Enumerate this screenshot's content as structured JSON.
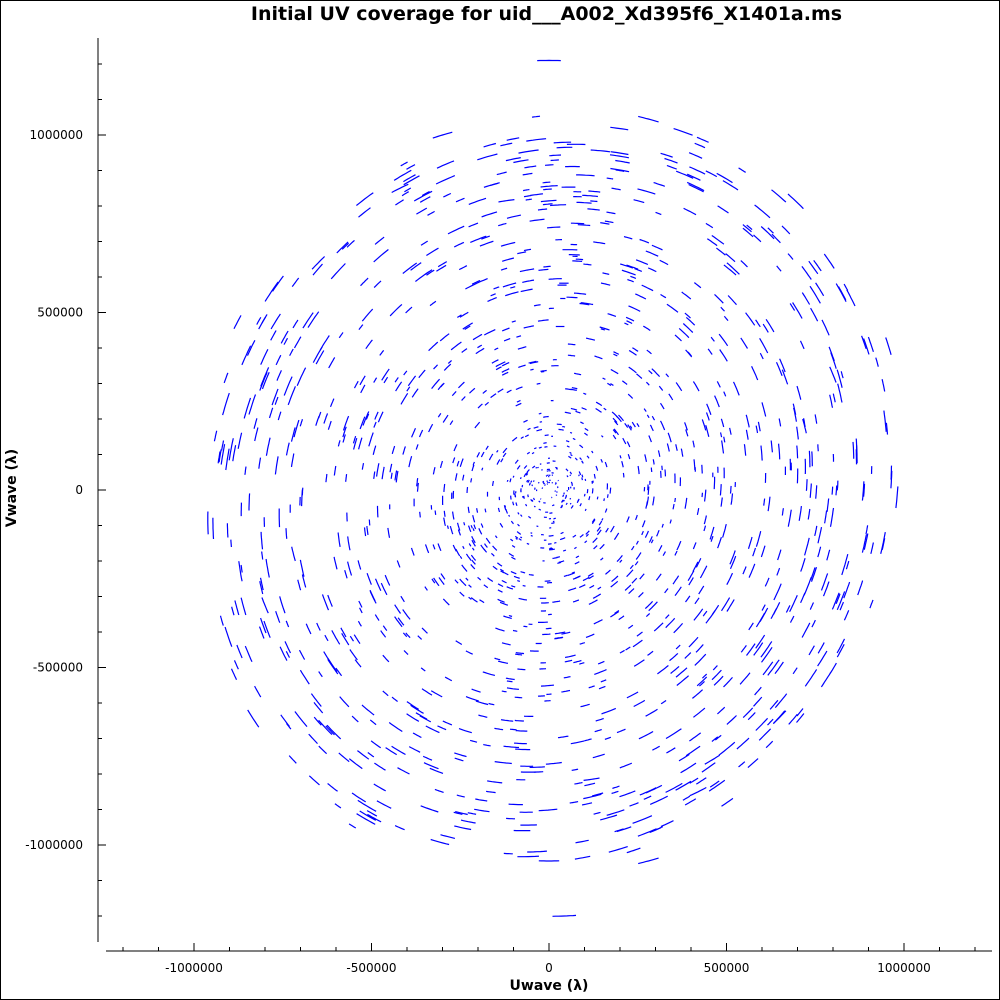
{
  "chart_data": {
    "type": "scatter",
    "title": "Initial UV coverage for uid___A002_Xd395f6_X1401a.ms",
    "xlabel": "Uwave (λ)",
    "ylabel": "Vwave (λ)",
    "xlim": [
      -1270000,
      1270000
    ],
    "ylim": [
      -1270000,
      1270000
    ],
    "x_ticks": [
      -1000000,
      -500000,
      0,
      500000,
      1000000
    ],
    "x_tick_labels": [
      "-1000000",
      "-500000",
      "0",
      "500000",
      "1000000"
    ],
    "y_ticks": [
      -1000000,
      -500000,
      0,
      500000,
      1000000
    ],
    "y_tick_labels": [
      "-1000000",
      "-500000",
      "0",
      "500000",
      "1000000"
    ],
    "grid": false,
    "marker": "arc-segments",
    "series_color": "#0000ff",
    "tracks": [
      {
        "u": 0,
        "v": 1210000
      },
      {
        "u": 43000,
        "v": -1200000
      },
      {
        "u": 0,
        "v": -1045000
      },
      {
        "u": 280000,
        "v": 1045000
      },
      {
        "u": 280000,
        "v": -1045000
      },
      {
        "u": 800000,
        "v": 325000
      },
      {
        "u": -800000,
        "v": -325000
      },
      {
        "u": 770000,
        "v": -475000
      },
      {
        "u": -770000,
        "v": 475000
      },
      {
        "u": 510000,
        "v": 620000
      },
      {
        "u": -510000,
        "v": -620000
      },
      {
        "u": 650000,
        "v": -640000
      },
      {
        "u": -650000,
        "v": 640000
      },
      {
        "u": 720000,
        "v": 180000
      },
      {
        "u": -720000,
        "v": -180000
      },
      {
        "u": 120000,
        "v": -815000
      },
      {
        "u": -120000,
        "v": 815000
      },
      {
        "u": 420000,
        "v": -850000
      },
      {
        "u": -420000,
        "v": 850000
      },
      {
        "u": 460000,
        "v": -760000
      },
      {
        "u": -300000,
        "v": 1000000
      }
    ]
  }
}
